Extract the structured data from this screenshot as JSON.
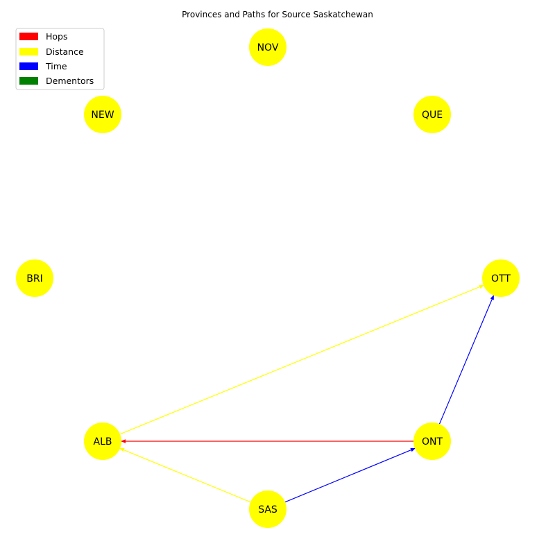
{
  "title": "Provinces and Paths for Source Saskatchewan",
  "legend": [
    {
      "key": "hops",
      "label": "Hops",
      "color": "#ff0000"
    },
    {
      "key": "distance",
      "label": "Distance",
      "color": "#ffff00"
    },
    {
      "key": "time",
      "label": "Time",
      "color": "#0000ff"
    },
    {
      "key": "dementors",
      "label": "Dementors",
      "color": "#008000"
    }
  ],
  "node_color": "#ffff00",
  "nodes": [
    {
      "id": "NOV",
      "label": "NOV"
    },
    {
      "id": "NEW",
      "label": "NEW"
    },
    {
      "id": "QUE",
      "label": "QUE"
    },
    {
      "id": "BRI",
      "label": "BRI"
    },
    {
      "id": "OTT",
      "label": "OTT"
    },
    {
      "id": "ALB",
      "label": "ALB"
    },
    {
      "id": "ONT",
      "label": "ONT"
    },
    {
      "id": "SAS",
      "label": "SAS"
    }
  ],
  "edges": [
    {
      "from": "ALB",
      "to": "OTT",
      "path": "distance"
    },
    {
      "from": "SAS",
      "to": "ALB",
      "path": "distance"
    },
    {
      "from": "ONT",
      "to": "ALB",
      "path": "hops"
    },
    {
      "from": "SAS",
      "to": "ONT",
      "path": "time"
    },
    {
      "from": "ONT",
      "to": "OTT",
      "path": "time"
    }
  ]
}
